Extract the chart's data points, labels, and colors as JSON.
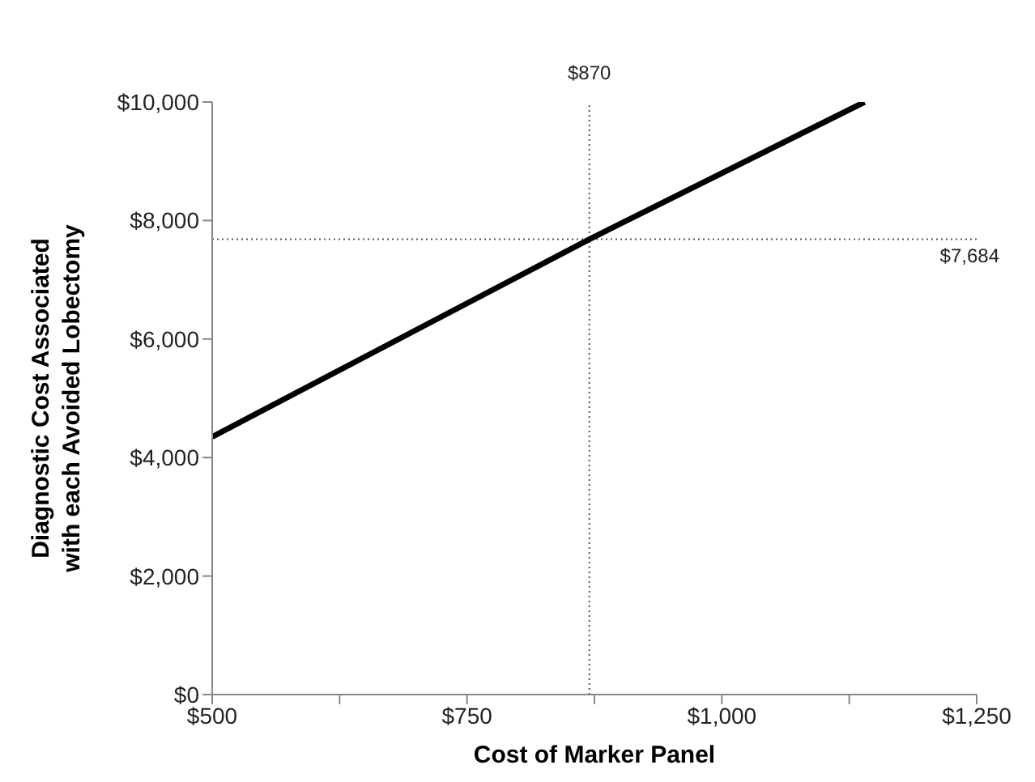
{
  "chart_data": {
    "type": "line",
    "xlabel": "Cost of Marker Panel",
    "ylabel": "Diagnostic Cost Associated with each Avoided Lobectomy",
    "x": [
      500,
      870,
      1140
    ],
    "series": [
      {
        "color": "#000000",
        "values": [
          4350,
          7684,
          10000
        ]
      }
    ],
    "xlim": [
      500,
      1250
    ],
    "xticks": [
      {
        "value": 500,
        "label": "$500"
      },
      {
        "value": 625,
        "label": null
      },
      {
        "value": 750,
        "label": "$750"
      },
      {
        "value": 875,
        "label": null
      },
      {
        "value": 1000,
        "label": "$1,000"
      },
      {
        "value": 1125,
        "label": null
      },
      {
        "value": 1250,
        "label": "$1,250"
      }
    ],
    "ylim": [
      0,
      10000
    ],
    "yticks": [
      {
        "value": 0,
        "label": "$0"
      },
      {
        "value": 2000,
        "label": "$2,000"
      },
      {
        "value": 4000,
        "label": "$4,000"
      },
      {
        "value": 6000,
        "label": "$6,000"
      },
      {
        "value": 8000,
        "label": "$8,000"
      },
      {
        "value": 10000,
        "label": "$10,000"
      }
    ],
    "ref_lines": [
      {
        "axis": "x",
        "value": 870,
        "label": "$870",
        "color": "#555555",
        "line_style": "dotted"
      },
      {
        "axis": "y",
        "value": 7684,
        "label": "$7,684",
        "color": "#555555",
        "line_style": "dotted"
      }
    ],
    "grid": false,
    "legend": false,
    "marker": "none",
    "line_style": "solid"
  }
}
